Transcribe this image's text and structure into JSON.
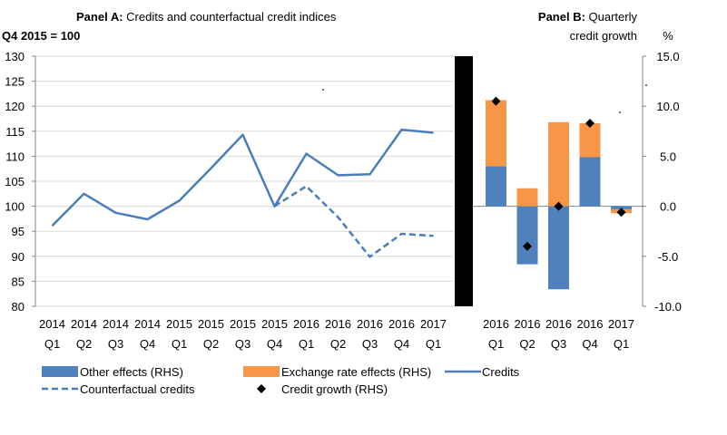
{
  "colors": {
    "blue": "#4f81bd",
    "line": "#4a7ebb",
    "orange": "#f79646",
    "marker": "#000000",
    "axis": "#868686",
    "divider": "#000000"
  },
  "legend": {
    "other_effects": "Other effects (RHS)",
    "exchange_rate_effects": "Exchange rate effects (RHS)",
    "credits": "Credits",
    "counterfactual": "Counterfactual credits",
    "credit_growth": "Credit growth (RHS)"
  },
  "chart_data": [
    {
      "panel": "A",
      "type": "line",
      "title_bold": "Panel A:",
      "title": " Credits and counterfactual credit indices",
      "ylabel": "Q4 2015 = 100",
      "xlabel": "",
      "ylim": [
        80,
        130
      ],
      "yticks": [
        80,
        85,
        90,
        95,
        100,
        105,
        110,
        115,
        120,
        125,
        130
      ],
      "grid": true,
      "categories": [
        [
          "2014",
          "Q1"
        ],
        [
          "2014",
          "Q2"
        ],
        [
          "2014",
          "Q3"
        ],
        [
          "2014",
          "Q4"
        ],
        [
          "2015",
          "Q1"
        ],
        [
          "2015",
          "Q2"
        ],
        [
          "2015",
          "Q3"
        ],
        [
          "2015",
          "Q4"
        ],
        [
          "2016",
          "Q1"
        ],
        [
          "2016",
          "Q2"
        ],
        [
          "2016",
          "Q3"
        ],
        [
          "2016",
          "Q4"
        ],
        [
          "2017",
          "Q1"
        ]
      ],
      "series": [
        {
          "name": "Credits",
          "style": "solid",
          "values": [
            96.1,
            102.5,
            98.7,
            97.4,
            101.1,
            107.6,
            114.3,
            100.0,
            110.5,
            106.2,
            106.4,
            115.3,
            114.7
          ]
        },
        {
          "name": "Counterfactual credits",
          "style": "dashed",
          "values": [
            null,
            null,
            null,
            null,
            null,
            null,
            null,
            100.0,
            104.0,
            97.8,
            89.9,
            94.5,
            94.1
          ]
        }
      ]
    },
    {
      "panel": "B",
      "type": "bar",
      "stacked": true,
      "title_bold": "Panel B:",
      "title_line1": " Quarterly",
      "title_line2": "credit growth",
      "ylabel": "%",
      "xlabel": "",
      "ylim": [
        -10,
        15
      ],
      "yticks": [
        "-10.0",
        "-5.0",
        "0.0",
        "5.0",
        "10.0",
        "15.0"
      ],
      "categories": [
        [
          "2016",
          "Q1"
        ],
        [
          "2016",
          "Q2"
        ],
        [
          "2016",
          "Q3"
        ],
        [
          "2016",
          "Q4"
        ],
        [
          "2017",
          "Q1"
        ]
      ],
      "series": [
        {
          "name": "Other effects (RHS)",
          "values": [
            4.0,
            -5.8,
            -8.3,
            4.9,
            -0.3
          ]
        },
        {
          "name": "Exchange rate effects (RHS)",
          "values": [
            6.6,
            1.8,
            8.4,
            3.4,
            -0.4
          ]
        },
        {
          "name": "Credit growth (RHS)",
          "kind": "marker",
          "values": [
            10.5,
            -4.0,
            0.0,
            8.3,
            -0.6
          ]
        }
      ]
    }
  ]
}
